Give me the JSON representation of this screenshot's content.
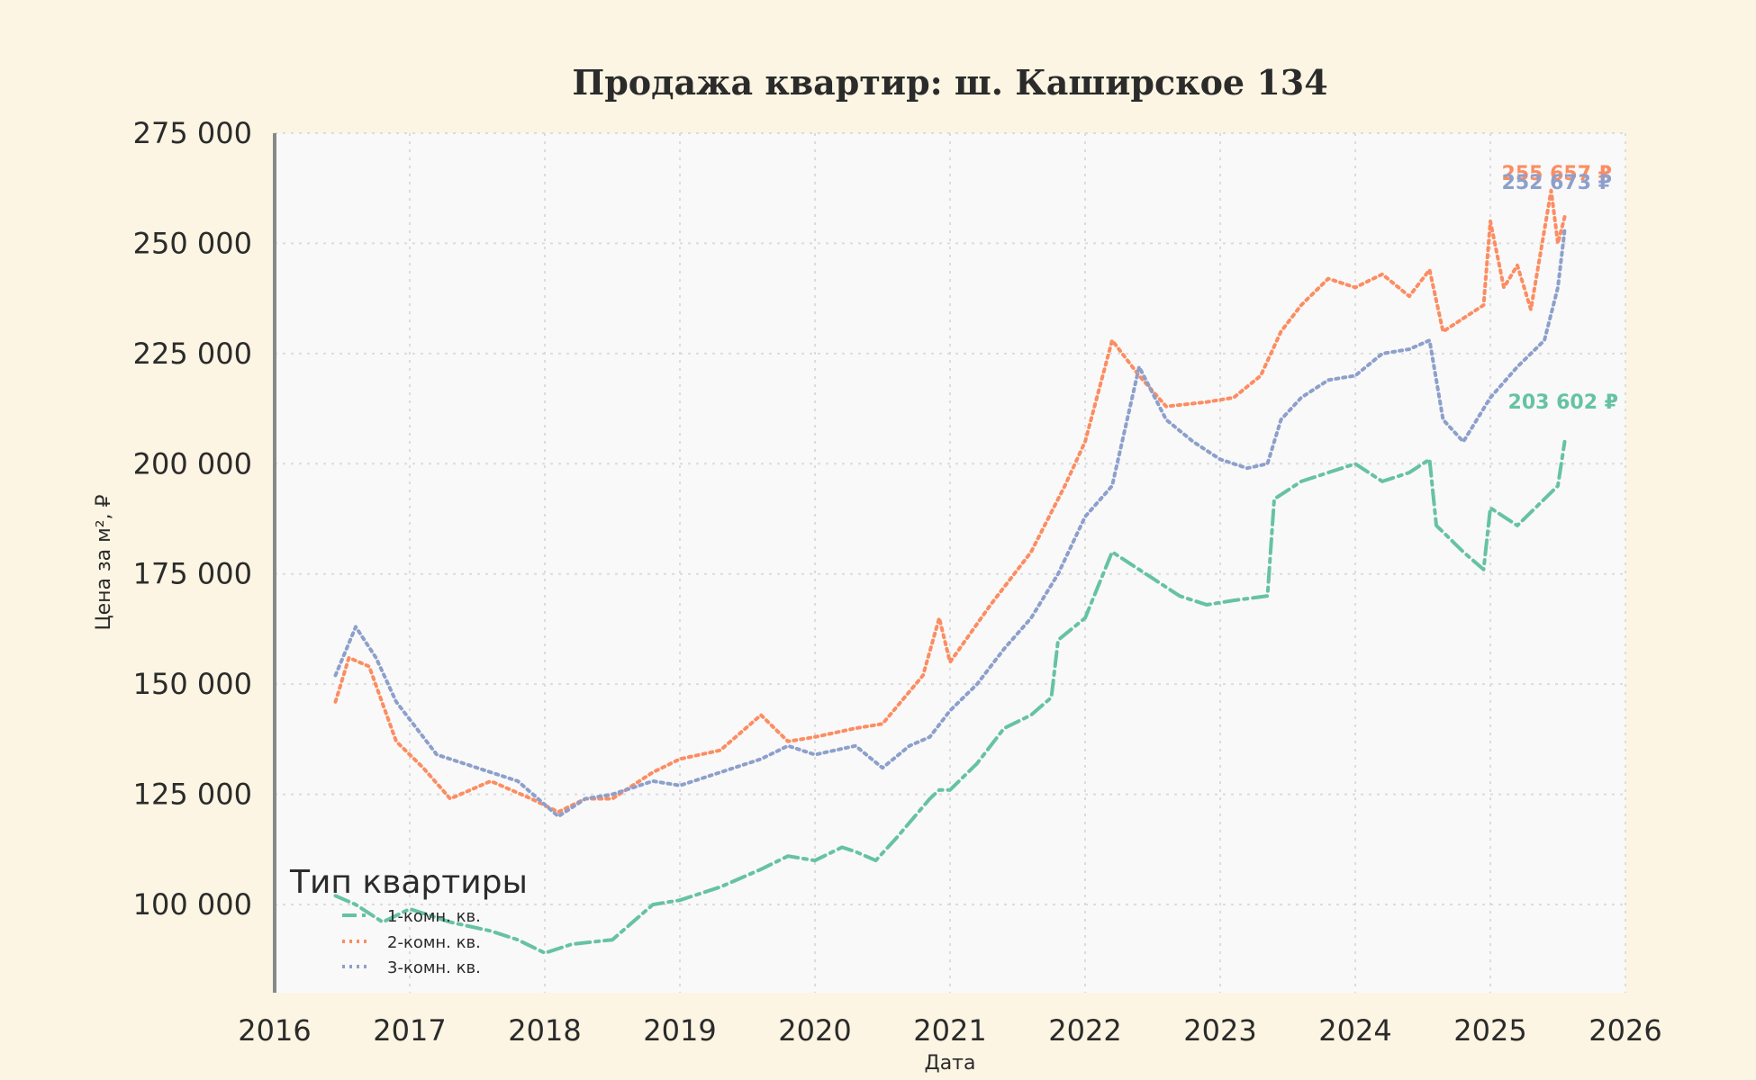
{
  "chart_data": {
    "type": "line",
    "title": "Продажа квартир: ш. Каширское 134",
    "xlabel": "Дата",
    "ylabel": "Цена за м², ₽",
    "xlim": [
      2016,
      2026
    ],
    "ylim": [
      80000,
      275000
    ],
    "x_ticks": [
      "2016",
      "2017",
      "2018",
      "2019",
      "2020",
      "2021",
      "2022",
      "2023",
      "2024",
      "2025",
      "2026"
    ],
    "y_ticks": [
      "100 000",
      "125 000",
      "150 000",
      "175 000",
      "200 000",
      "225 000",
      "250 000",
      "275 000"
    ],
    "grid": true,
    "legend": {
      "title": "Тип квартиры",
      "placement": "bottom-left"
    },
    "series": [
      {
        "name": "1-комн. кв.",
        "color": "#66c2a5",
        "dash": "dashdot",
        "end_label": "203 602 ₽",
        "x": [
          2016.45,
          2016.6,
          2016.8,
          2017.0,
          2017.3,
          2017.6,
          2017.8,
          2018.0,
          2018.2,
          2018.5,
          2018.8,
          2019.0,
          2019.3,
          2019.6,
          2019.8,
          2020.0,
          2020.2,
          2020.3,
          2020.45,
          2020.6,
          2020.85,
          2020.92,
          2021.0,
          2021.2,
          2021.4,
          2021.6,
          2021.75,
          2021.8,
          2022.0,
          2022.2,
          2022.3,
          2022.5,
          2022.7,
          2022.9,
          2023.1,
          2023.35,
          2023.4,
          2023.6,
          2023.8,
          2024.0,
          2024.2,
          2024.4,
          2024.55,
          2024.6,
          2024.8,
          2024.95,
          2025.0,
          2025.2,
          2025.4,
          2025.5,
          2025.55
        ],
        "y": [
          102000,
          100000,
          96000,
          99000,
          96000,
          94000,
          92000,
          89000,
          91000,
          92000,
          100000,
          101000,
          104000,
          108000,
          111000,
          110000,
          113000,
          112000,
          110000,
          115000,
          124000,
          126000,
          126000,
          132000,
          140000,
          143000,
          147000,
          160000,
          165000,
          180000,
          178000,
          174000,
          170000,
          168000,
          169000,
          170000,
          192000,
          196000,
          198000,
          200000,
          196000,
          198000,
          201000,
          186000,
          180000,
          176000,
          190000,
          186000,
          192000,
          195000,
          205000
        ]
      },
      {
        "name": "2-комн. кв.",
        "color": "#fc8d62",
        "dash": "dotted",
        "end_label": "255 657 ₽",
        "x": [
          2016.45,
          2016.55,
          2016.7,
          2016.9,
          2017.1,
          2017.3,
          2017.6,
          2017.9,
          2018.1,
          2018.3,
          2018.5,
          2018.8,
          2019.0,
          2019.3,
          2019.6,
          2019.8,
          2020.0,
          2020.3,
          2020.5,
          2020.8,
          2020.92,
          2021.0,
          2021.3,
          2021.6,
          2021.85,
          2022.0,
          2022.2,
          2022.4,
          2022.6,
          2022.9,
          2023.1,
          2023.3,
          2023.45,
          2023.6,
          2023.8,
          2024.0,
          2024.2,
          2024.4,
          2024.55,
          2024.65,
          2024.8,
          2024.95,
          2025.0,
          2025.1,
          2025.2,
          2025.3,
          2025.45,
          2025.5,
          2025.55
        ],
        "y": [
          146000,
          156000,
          154000,
          137000,
          131000,
          124000,
          128000,
          124000,
          121000,
          124000,
          124000,
          130000,
          133000,
          135000,
          143000,
          137000,
          138000,
          140000,
          141000,
          152000,
          165000,
          155000,
          168000,
          180000,
          195000,
          205000,
          228000,
          220000,
          213000,
          214000,
          215000,
          220000,
          230000,
          236000,
          242000,
          240000,
          243000,
          238000,
          244000,
          230000,
          233000,
          236000,
          255000,
          240000,
          245000,
          235000,
          262000,
          250000,
          256000
        ]
      },
      {
        "name": "3-комн. кв.",
        "color": "#8da0cb",
        "dash": "dotted",
        "end_label": "252 673 ₽",
        "x": [
          2016.45,
          2016.6,
          2016.75,
          2016.9,
          2017.0,
          2017.2,
          2017.5,
          2017.8,
          2018.1,
          2018.3,
          2018.5,
          2018.8,
          2019.0,
          2019.3,
          2019.6,
          2019.8,
          2020.0,
          2020.3,
          2020.5,
          2020.7,
          2020.85,
          2021.0,
          2021.2,
          2021.4,
          2021.6,
          2021.8,
          2022.0,
          2022.2,
          2022.4,
          2022.6,
          2022.8,
          2023.0,
          2023.2,
          2023.35,
          2023.45,
          2023.6,
          2023.8,
          2024.0,
          2024.2,
          2024.4,
          2024.55,
          2024.65,
          2024.8,
          2025.0,
          2025.2,
          2025.4,
          2025.5,
          2025.55
        ],
        "y": [
          152000,
          163000,
          156000,
          146000,
          142000,
          134000,
          131000,
          128000,
          120000,
          124000,
          125000,
          128000,
          127000,
          130000,
          133000,
          136000,
          134000,
          136000,
          131000,
          136000,
          138000,
          144000,
          150000,
          158000,
          165000,
          175000,
          188000,
          195000,
          222000,
          210000,
          205000,
          201000,
          199000,
          200000,
          210000,
          215000,
          219000,
          220000,
          225000,
          226000,
          228000,
          210000,
          205000,
          215000,
          222000,
          228000,
          240000,
          253000
        ]
      }
    ]
  }
}
